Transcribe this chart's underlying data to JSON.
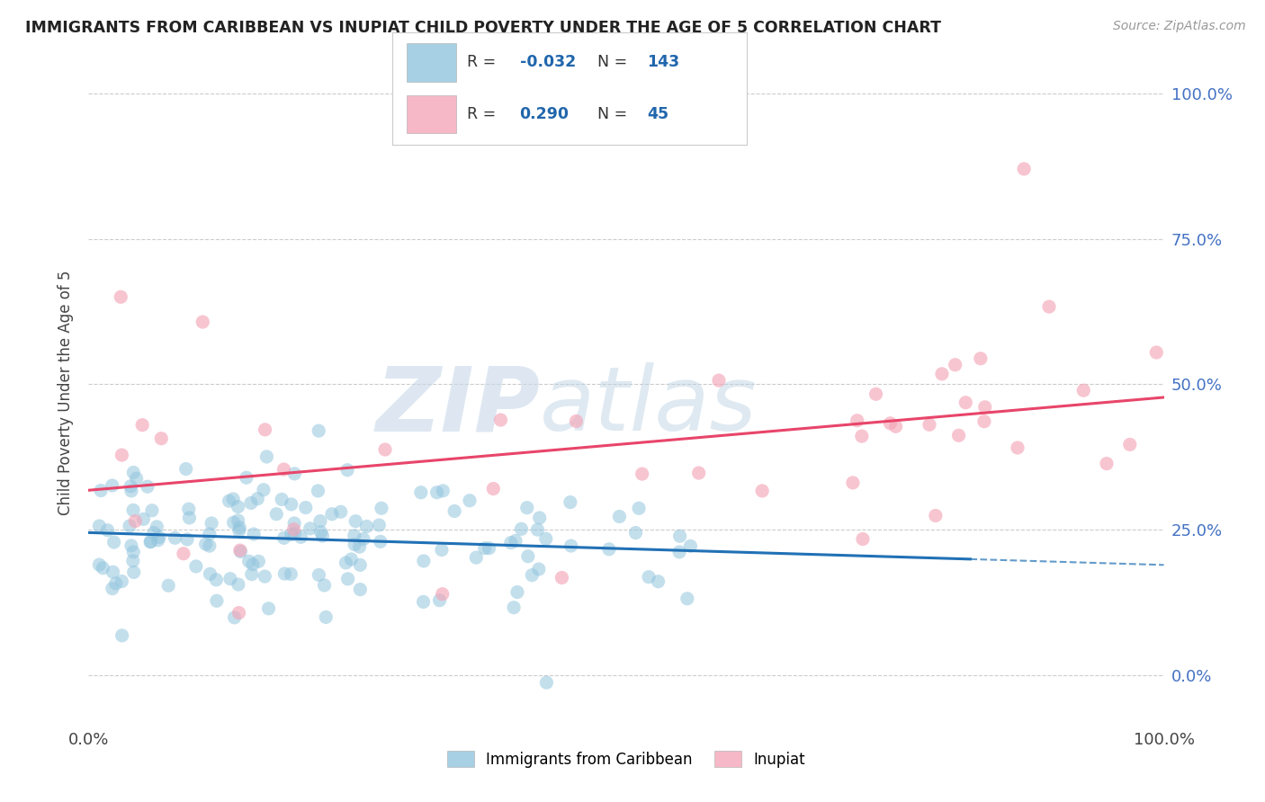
{
  "title": "IMMIGRANTS FROM CARIBBEAN VS INUPIAT CHILD POVERTY UNDER THE AGE OF 5 CORRELATION CHART",
  "source": "Source: ZipAtlas.com",
  "ylabel": "Child Poverty Under the Age of 5",
  "ytick_vals": [
    0.0,
    0.25,
    0.5,
    0.75,
    1.0
  ],
  "ytick_labels": [
    "0.0%",
    "25.0%",
    "50.0%",
    "75.0%",
    "100.0%"
  ],
  "xtick_vals": [
    0.0,
    1.0
  ],
  "xtick_labels": [
    "0.0%",
    "100.0%"
  ],
  "xlim": [
    0.0,
    1.0
  ],
  "ylim": [
    -0.08,
    1.05
  ],
  "blue_color": "#92c5de",
  "pink_color": "#f4a6b8",
  "blue_line_color": "#2171b5",
  "pink_line_color": "#e8456a",
  "legend_blue_label": "Immigrants from Caribbean",
  "legend_pink_label": "Inupiat",
  "R_blue": -0.032,
  "N_blue": 143,
  "R_pink": 0.29,
  "N_pink": 45,
  "watermark_zip": "ZIP",
  "watermark_atlas": "atlas",
  "blue_seed": 12,
  "pink_seed": 77
}
